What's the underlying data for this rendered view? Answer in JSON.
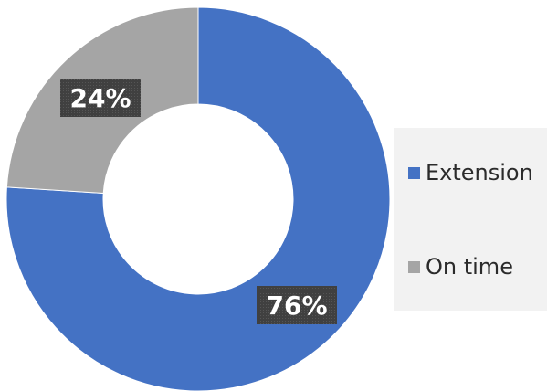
{
  "chart_data": {
    "type": "pie",
    "variant": "donut",
    "title": "",
    "categories": [
      "Extension",
      "On time"
    ],
    "values": [
      76,
      24
    ],
    "unit": "%",
    "data_labels": [
      "76%",
      "24%"
    ],
    "colors": [
      "#4472c4",
      "#a5a5a5"
    ],
    "label_box_color": "#404040",
    "legend": {
      "position": "right",
      "items": [
        {
          "label": "Extension",
          "color": "#4472c4"
        },
        {
          "label": "On time",
          "color": "#a5a5a5"
        }
      ]
    }
  }
}
